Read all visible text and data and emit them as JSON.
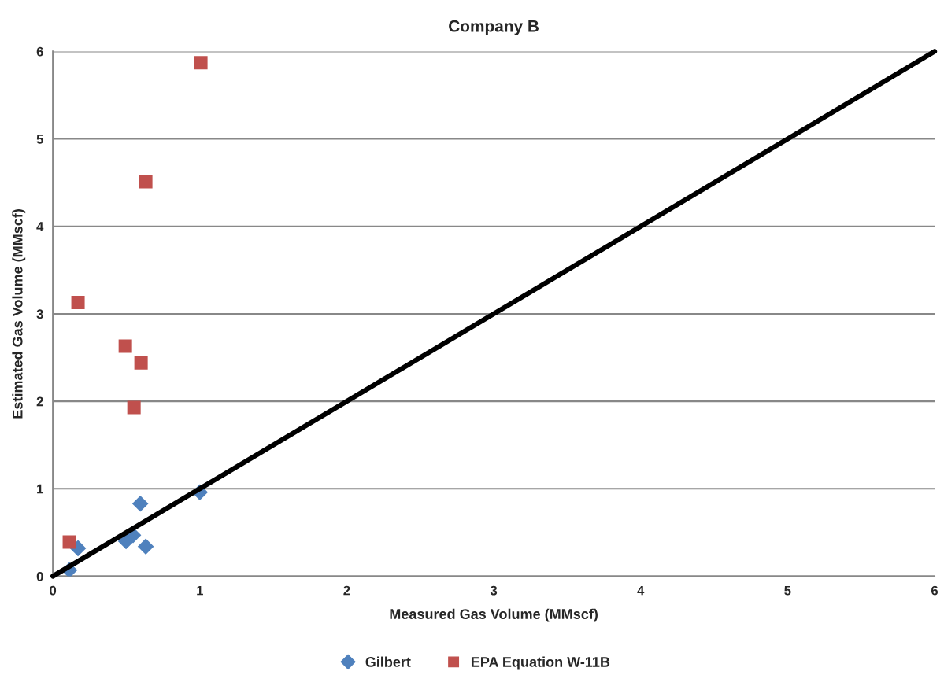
{
  "chart_data": {
    "type": "scatter",
    "title": "Company B",
    "xlabel": "Measured Gas Volume (MMscf)",
    "ylabel": "Estimated Gas Volume (MMscf)",
    "xlim": [
      0,
      6
    ],
    "ylim": [
      0,
      6
    ],
    "xticks": [
      0,
      1,
      2,
      3,
      4,
      5,
      6
    ],
    "yticks": [
      0,
      1,
      2,
      3,
      4,
      5,
      6
    ],
    "grid": "y",
    "legend": "bottom",
    "series": [
      {
        "name": "Gilbert",
        "color": "#4f81bd",
        "marker": "diamond",
        "x": [
          1.0,
          0.595,
          0.171,
          0.112,
          0.498,
          0.546,
          0.632
        ],
        "values": [
          0.96,
          0.83,
          0.32,
          0.07,
          0.4,
          0.47,
          0.34
        ]
      },
      {
        "name": "EPA Equation W-11B",
        "color": "#c0504d",
        "marker": "square",
        "x": [
          1.007,
          0.632,
          0.171,
          0.493,
          0.6,
          0.552,
          0.112
        ],
        "values": [
          5.87,
          4.51,
          3.13,
          2.63,
          2.44,
          1.93,
          0.39
        ]
      },
      {
        "type": "line",
        "color": "#000000",
        "marker": "none",
        "line_style": "solid",
        "x": [
          0,
          6
        ],
        "values": [
          0,
          6
        ]
      }
    ]
  }
}
